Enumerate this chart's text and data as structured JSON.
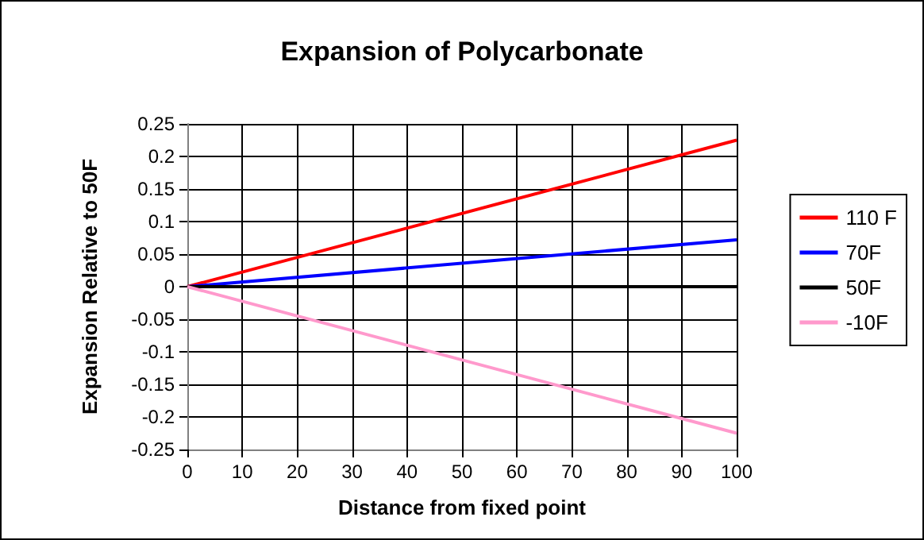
{
  "chart_data": {
    "type": "line",
    "title": "Expansion of Polycarbonate",
    "xlabel": "Distance from fixed point",
    "ylabel": "Expansion Relative to 50F",
    "x": [
      0,
      100
    ],
    "series": [
      {
        "name": "110 F",
        "color": "#ff0000",
        "values": [
          0,
          0.225
        ]
      },
      {
        "name": "70F",
        "color": "#0000ff",
        "values": [
          0,
          0.072
        ]
      },
      {
        "name": "50F",
        "color": "#000000",
        "values": [
          0,
          0
        ]
      },
      {
        "name": "-10F",
        "color": "#ff99cc",
        "values": [
          0,
          -0.225
        ]
      }
    ],
    "xlim": [
      0,
      100
    ],
    "xticks": [
      0,
      10,
      20,
      30,
      40,
      50,
      60,
      70,
      80,
      90,
      100
    ],
    "ylim": [
      -0.25,
      0.25
    ],
    "yticks": [
      -0.25,
      -0.2,
      -0.15,
      -0.1,
      -0.05,
      0,
      0.05,
      0.1,
      0.15,
      0.2,
      0.25
    ],
    "grid": true,
    "legend": "right",
    "marker": "none",
    "line_style": "solid"
  }
}
